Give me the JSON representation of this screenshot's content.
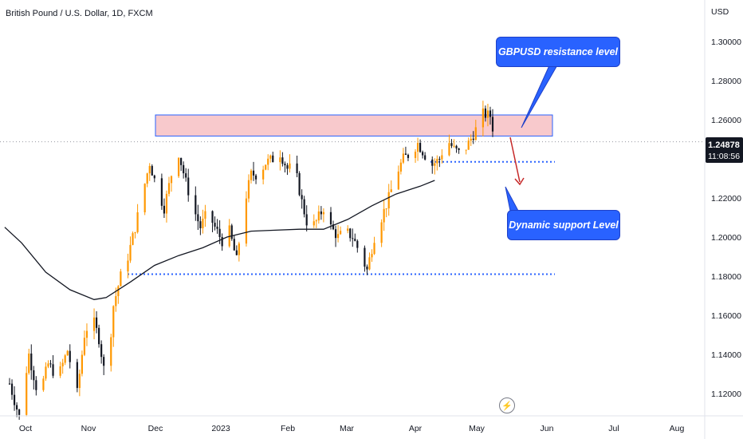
{
  "chart_data": {
    "type": "candlestick",
    "title": "British Pound / U.S. Dollar, 1D, FXCM",
    "currency_label": "USD",
    "y_ticks": [
      1.12,
      1.14,
      1.16,
      1.18,
      1.2,
      1.22,
      1.24,
      1.26,
      1.28,
      1.3
    ],
    "y_tick_labels": [
      "1.12000",
      "1.14000",
      "1.16000",
      "1.18000",
      "1.20000",
      "1.22000",
      "1.24000",
      "1.26000",
      "1.28000",
      "1.30000"
    ],
    "ylim": [
      1.105,
      1.325
    ],
    "x_labels": [
      "Oct",
      "Nov",
      "Dec",
      "2023",
      "Feb",
      "Mar",
      "Apr",
      "May",
      "Jun",
      "Jul",
      "Aug"
    ],
    "last_price": "1.24878",
    "countdown": "11:08:56",
    "resistance_zone": [
      1.2517,
      1.2625
    ],
    "support_line_upper": 1.2385,
    "support_line_lower": 1.181,
    "moving_average": [
      {
        "day": -2,
        "value": 1.205
      },
      {
        "day": 5,
        "value": 1.197
      },
      {
        "day": 15,
        "value": 1.182
      },
      {
        "day": 25,
        "value": 1.173
      },
      {
        "day": 35,
        "value": 1.168
      },
      {
        "day": 40,
        "value": 1.169
      },
      {
        "day": 50,
        "value": 1.177
      },
      {
        "day": 60,
        "value": 1.1855
      },
      {
        "day": 70,
        "value": 1.1905
      },
      {
        "day": 80,
        "value": 1.1945
      },
      {
        "day": 90,
        "value": 1.2
      },
      {
        "day": 100,
        "value": 1.203
      },
      {
        "day": 110,
        "value": 1.2035
      },
      {
        "day": 120,
        "value": 1.204
      },
      {
        "day": 130,
        "value": 1.204
      },
      {
        "day": 140,
        "value": 1.209
      },
      {
        "day": 150,
        "value": 1.216
      },
      {
        "day": 160,
        "value": 1.222
      },
      {
        "day": 170,
        "value": 1.226
      },
      {
        "day": 176,
        "value": 1.229
      }
    ]
  },
  "annotations": {
    "resistance_label": "GBPUSD resistance level",
    "support_label": "Dynamic support Level"
  },
  "colors": {
    "bull": "#ff9800",
    "bear": "#131722",
    "zone_fill": "#f8c9cc",
    "zone_border": "#2962ff",
    "dotted_line": "#2962ff",
    "ma": "#131722",
    "arrow": "#c62828",
    "callout": "#2962ff",
    "price_label": "#131722"
  }
}
